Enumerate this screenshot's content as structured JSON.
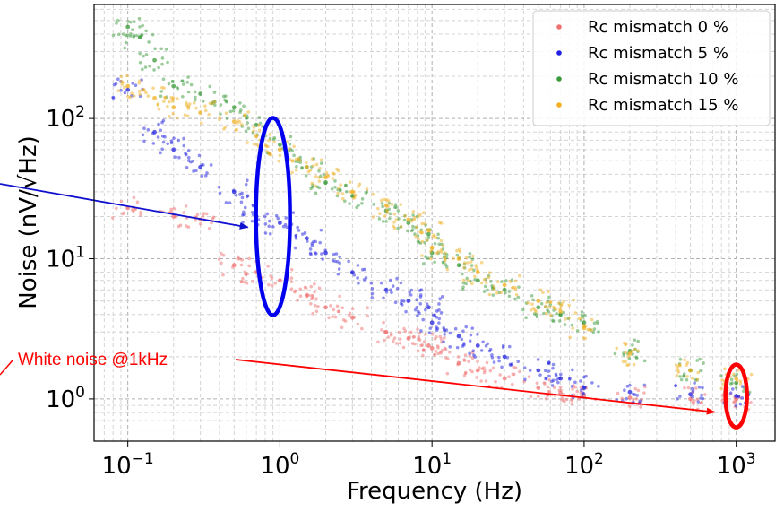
{
  "chart_data": {
    "type": "scatter",
    "title": "",
    "xlabel": "Frequency (Hz)",
    "ylabel": "Noise (nV/√Hz)",
    "x_scale": "log",
    "y_scale": "log",
    "xlim": [
      0.06,
      1800
    ],
    "ylim": [
      0.5,
      650
    ],
    "grid": true,
    "legend_position": "top-right",
    "x_ticks": [
      {
        "value": 0.1,
        "base": "10",
        "exp": "−1"
      },
      {
        "value": 1,
        "base": "10",
        "exp": "0"
      },
      {
        "value": 10,
        "base": "10",
        "exp": "1"
      },
      {
        "value": 100,
        "base": "10",
        "exp": "2"
      },
      {
        "value": 1000,
        "base": "10",
        "exp": "3"
      }
    ],
    "y_ticks": [
      {
        "value": 1,
        "base": "10",
        "exp": "0"
      },
      {
        "value": 10,
        "base": "10",
        "exp": "1"
      },
      {
        "value": 100,
        "base": "10",
        "exp": "2"
      }
    ],
    "series": [
      {
        "name": "Rc mismatch 0 %",
        "color": "#f07070",
        "points": [
          [
            0.1,
            23
          ],
          [
            0.2,
            20
          ],
          [
            0.3,
            19
          ],
          [
            0.5,
            9
          ],
          [
            0.7,
            8
          ],
          [
            1,
            7
          ],
          [
            1.5,
            5.5
          ],
          [
            2,
            4.5
          ],
          [
            3,
            3.8
          ],
          [
            5,
            3
          ],
          [
            7,
            2.7
          ],
          [
            9.5,
            2.4
          ],
          [
            10,
            2.3
          ],
          [
            15,
            1.8
          ],
          [
            20,
            1.6
          ],
          [
            30,
            1.4
          ],
          [
            50,
            1.2
          ],
          [
            70,
            1.1
          ],
          [
            100,
            1.05
          ],
          [
            200,
            1.02
          ],
          [
            500,
            1.0
          ],
          [
            1000,
            1.0
          ]
        ]
      },
      {
        "name": "Rc mismatch 5 %",
        "color": "#2020e0",
        "points": [
          [
            0.1,
            160
          ],
          [
            0.15,
            80
          ],
          [
            0.2,
            60
          ],
          [
            0.3,
            45
          ],
          [
            0.5,
            30
          ],
          [
            0.7,
            20
          ],
          [
            1,
            18
          ],
          [
            1.5,
            14
          ],
          [
            2,
            11
          ],
          [
            3,
            8
          ],
          [
            5,
            6
          ],
          [
            7,
            5
          ],
          [
            9.5,
            4.5
          ],
          [
            10,
            3.5
          ],
          [
            15,
            2.8
          ],
          [
            20,
            2.4
          ],
          [
            30,
            2
          ],
          [
            50,
            1.6
          ],
          [
            70,
            1.4
          ],
          [
            100,
            1.2
          ],
          [
            200,
            1.12
          ],
          [
            500,
            1.08
          ],
          [
            1000,
            1.05
          ]
        ]
      },
      {
        "name": "Rc mismatch 10 %",
        "color": "#3a9a3a",
        "points": [
          [
            0.1,
            450
          ],
          [
            0.12,
            380
          ],
          [
            0.15,
            260
          ],
          [
            0.2,
            170
          ],
          [
            0.3,
            150
          ],
          [
            0.5,
            120
          ],
          [
            0.7,
            90
          ],
          [
            1,
            65
          ],
          [
            1.5,
            45
          ],
          [
            2,
            35
          ],
          [
            3,
            28
          ],
          [
            5,
            22
          ],
          [
            7,
            18
          ],
          [
            9.5,
            15
          ],
          [
            10,
            11
          ],
          [
            15,
            9
          ],
          [
            20,
            7
          ],
          [
            30,
            6
          ],
          [
            50,
            4.5
          ],
          [
            70,
            4
          ],
          [
            100,
            3.5
          ],
          [
            200,
            2.2
          ],
          [
            500,
            1.6
          ],
          [
            1000,
            1.3
          ]
        ]
      },
      {
        "name": "Rc mismatch 15 %",
        "color": "#f0b020",
        "points": [
          [
            0.1,
            170
          ],
          [
            0.15,
            140
          ],
          [
            0.2,
            120
          ],
          [
            0.3,
            110
          ],
          [
            0.5,
            95
          ],
          [
            0.7,
            75
          ],
          [
            1,
            60
          ],
          [
            1.5,
            45
          ],
          [
            2,
            38
          ],
          [
            3,
            30
          ],
          [
            5,
            24
          ],
          [
            7,
            19
          ],
          [
            9.5,
            16
          ],
          [
            10,
            12
          ],
          [
            15,
            10
          ],
          [
            20,
            8
          ],
          [
            30,
            6.5
          ],
          [
            50,
            5
          ],
          [
            70,
            4.2
          ],
          [
            100,
            3.2
          ],
          [
            200,
            2.1
          ],
          [
            500,
            1.6
          ],
          [
            1000,
            1.4
          ]
        ]
      }
    ],
    "annotations": [
      {
        "text": "White noise @1kHz",
        "color": "#ff0000"
      }
    ]
  }
}
